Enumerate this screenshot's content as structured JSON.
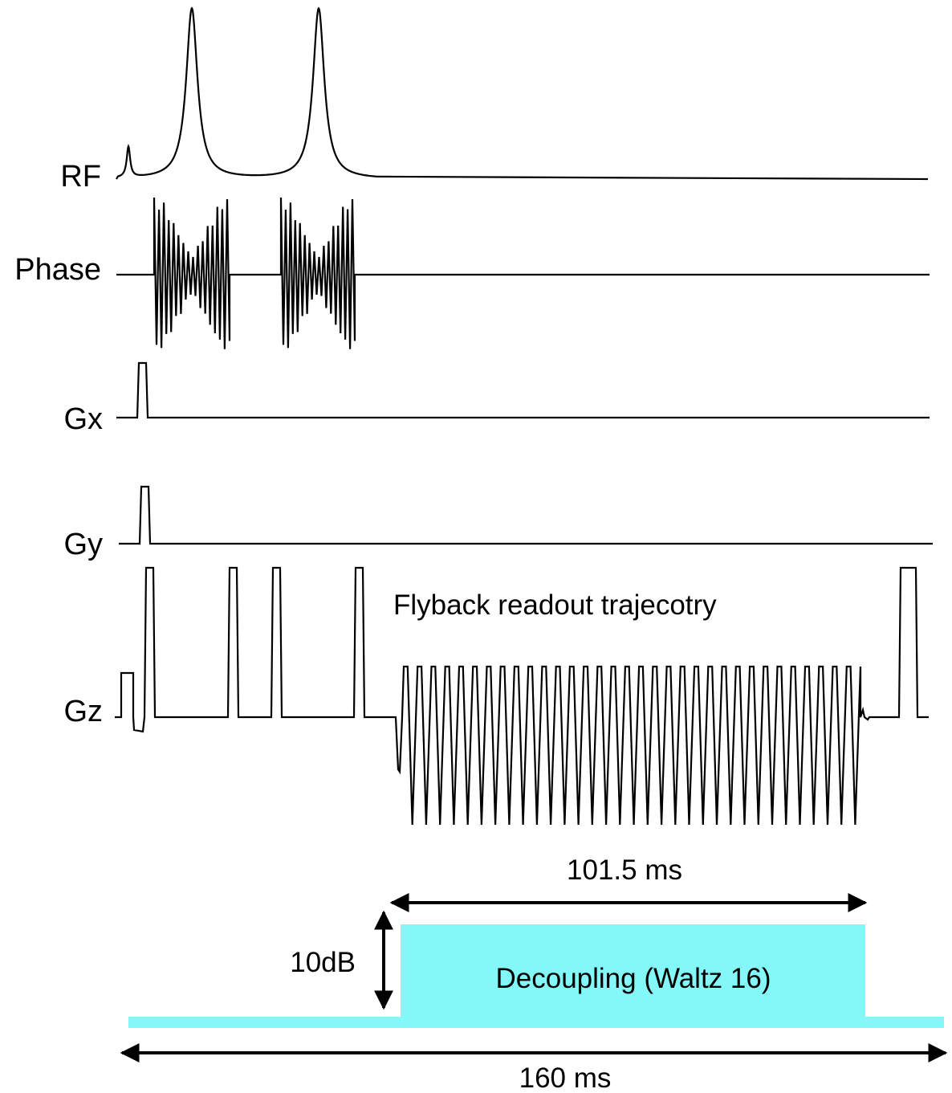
{
  "channels": {
    "rf": "RF",
    "phase": "Phase",
    "gx": "Gx",
    "gy": "Gy",
    "gz": "Gz"
  },
  "annotations": {
    "readout": "Flyback readout trajecotry",
    "readout_duration": "101.5 ms",
    "decoupling_power": "10dB",
    "decoupling_block": "Decoupling (Waltz 16)",
    "total_duration": "160 ms"
  },
  "colors": {
    "trace": "#000000",
    "decoupling_fill": "#84f8f8"
  }
}
